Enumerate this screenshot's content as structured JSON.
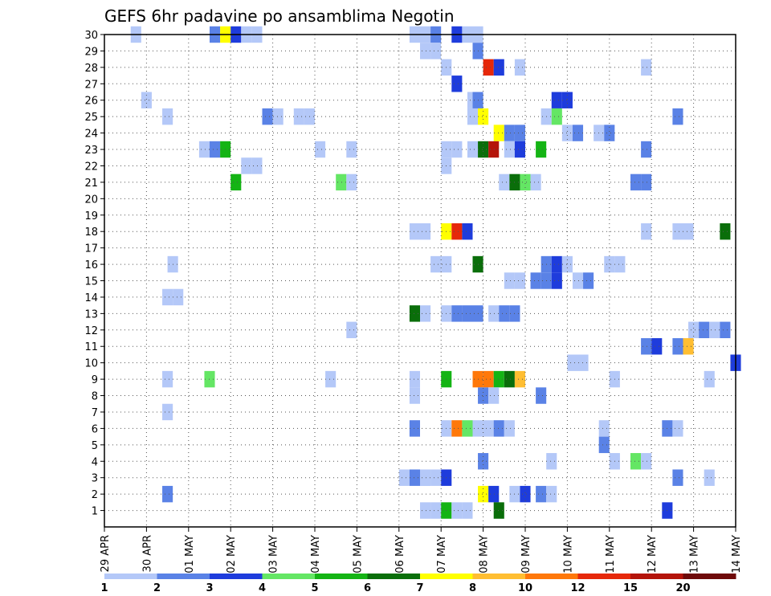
{
  "chart_data": {
    "type": "heatmap",
    "title": "GEFS 6hr padavine po ansamblima Negotin",
    "xlabel": "",
    "ylabel": "",
    "x_tick_labels": [
      "29 APR",
      "30 APR",
      "01 MAY",
      "02 MAY",
      "03 MAY",
      "04 MAY",
      "05 MAY",
      "06 MAY",
      "07 MAY",
      "08 MAY",
      "09 MAY",
      "10 MAY",
      "11 MAY",
      "12 MAY",
      "13 MAY",
      "14 MAY"
    ],
    "y_tick_labels": [
      "1",
      "2",
      "3",
      "4",
      "5",
      "6",
      "7",
      "8",
      "9",
      "10",
      "11",
      "12",
      "13",
      "14",
      "15",
      "16",
      "17",
      "18",
      "19",
      "20",
      "21",
      "22",
      "23",
      "24",
      "25",
      "26",
      "27",
      "28",
      "29",
      "30"
    ],
    "xlim": [
      0,
      15
    ],
    "ylim": [
      0,
      30
    ],
    "grid": true,
    "legend_position": "bottom",
    "legend": {
      "colors": [
        "#b4c8f8",
        "#5a82e6",
        "#1e3cdc",
        "#64e664",
        "#14b414",
        "#0a6e0a",
        "#ffff00",
        "#ffbe32",
        "#ff780a",
        "#e6280a",
        "#b4140a",
        "#6e0a0a"
      ],
      "labels": [
        "1",
        "2",
        "3",
        "4",
        "5",
        "6",
        "7",
        "8",
        "10",
        "12",
        "15",
        "20"
      ]
    },
    "colors": {
      "1": "#b4c8f8",
      "2": "#5a82e6",
      "3": "#1e3cdc",
      "4": "#64e664",
      "5": "#14b414",
      "6": "#0a6e0a",
      "7": "#ffff00",
      "8": "#ffbe32",
      "9": "#ff780a",
      "10": "#e6280a",
      "11": "#b4140a"
    },
    "cells": [
      [
        0.75,
        30,
        1
      ],
      [
        2.625,
        30,
        2
      ],
      [
        2.875,
        30,
        7
      ],
      [
        3.125,
        30,
        3
      ],
      [
        3.375,
        30,
        1
      ],
      [
        3.625,
        30,
        1
      ],
      [
        7.375,
        30,
        1
      ],
      [
        7.625,
        30,
        1
      ],
      [
        7.875,
        30,
        2
      ],
      [
        8.375,
        30,
        3
      ],
      [
        8.625,
        30,
        1
      ],
      [
        8.875,
        30,
        1
      ],
      [
        7.625,
        29,
        1
      ],
      [
        7.875,
        29,
        1
      ],
      [
        8.875,
        29,
        2
      ],
      [
        8.125,
        28,
        1
      ],
      [
        9.125,
        28,
        10
      ],
      [
        9.375,
        28,
        3
      ],
      [
        9.875,
        28,
        1
      ],
      [
        12.875,
        28,
        1
      ],
      [
        8.375,
        27,
        3
      ],
      [
        1.0,
        26,
        1
      ],
      [
        8.75,
        26,
        1
      ],
      [
        8.875,
        26,
        2
      ],
      [
        10.75,
        26,
        3
      ],
      [
        11.0,
        26,
        3
      ],
      [
        1.5,
        25,
        1
      ],
      [
        3.875,
        25,
        2
      ],
      [
        4.125,
        25,
        1
      ],
      [
        4.625,
        25,
        1
      ],
      [
        4.875,
        25,
        1
      ],
      [
        8.75,
        25,
        1
      ],
      [
        9.0,
        25,
        7
      ],
      [
        10.5,
        25,
        1
      ],
      [
        10.75,
        25,
        4
      ],
      [
        13.625,
        25,
        2
      ],
      [
        9.375,
        24,
        7
      ],
      [
        9.625,
        24,
        2
      ],
      [
        9.875,
        24,
        2
      ],
      [
        11.0,
        24,
        1
      ],
      [
        11.25,
        24,
        2
      ],
      [
        11.75,
        24,
        1
      ],
      [
        12.0,
        24,
        2
      ],
      [
        2.375,
        23,
        1
      ],
      [
        2.625,
        23,
        2
      ],
      [
        2.875,
        23,
        5
      ],
      [
        5.125,
        23,
        1
      ],
      [
        5.875,
        23,
        1
      ],
      [
        8.125,
        23,
        1
      ],
      [
        8.375,
        23,
        1
      ],
      [
        8.75,
        23,
        1
      ],
      [
        9.0,
        23,
        6
      ],
      [
        9.25,
        23,
        11
      ],
      [
        9.625,
        23,
        1
      ],
      [
        9.875,
        23,
        3
      ],
      [
        10.375,
        23,
        5
      ],
      [
        12.875,
        23,
        2
      ],
      [
        3.375,
        22,
        1
      ],
      [
        3.625,
        22,
        1
      ],
      [
        8.125,
        22,
        1
      ],
      [
        3.125,
        21,
        5
      ],
      [
        5.625,
        21,
        4
      ],
      [
        5.875,
        21,
        1
      ],
      [
        9.5,
        21,
        1
      ],
      [
        9.75,
        21,
        6
      ],
      [
        10.0,
        21,
        4
      ],
      [
        10.25,
        21,
        1
      ],
      [
        12.625,
        21,
        2
      ],
      [
        12.875,
        21,
        2
      ],
      [
        7.375,
        18,
        1
      ],
      [
        7.625,
        18,
        1
      ],
      [
        8.125,
        18,
        7
      ],
      [
        8.375,
        18,
        10
      ],
      [
        8.625,
        18,
        3
      ],
      [
        12.875,
        18,
        1
      ],
      [
        13.625,
        18,
        1
      ],
      [
        13.875,
        18,
        1
      ],
      [
        14.75,
        18,
        6
      ],
      [
        1.625,
        16,
        1
      ],
      [
        7.875,
        16,
        1
      ],
      [
        8.125,
        16,
        1
      ],
      [
        8.875,
        16,
        6
      ],
      [
        10.5,
        16,
        2
      ],
      [
        10.75,
        16,
        3
      ],
      [
        11.0,
        16,
        1
      ],
      [
        12.0,
        16,
        1
      ],
      [
        12.25,
        16,
        1
      ],
      [
        9.625,
        15,
        1
      ],
      [
        9.875,
        15,
        1
      ],
      [
        10.25,
        15,
        2
      ],
      [
        10.5,
        15,
        2
      ],
      [
        10.75,
        15,
        3
      ],
      [
        11.25,
        15,
        1
      ],
      [
        11.5,
        15,
        2
      ],
      [
        1.5,
        14,
        1
      ],
      [
        1.75,
        14,
        1
      ],
      [
        7.375,
        13,
        6
      ],
      [
        7.625,
        13,
        1
      ],
      [
        8.125,
        13,
        1
      ],
      [
        8.375,
        13,
        2
      ],
      [
        8.625,
        13,
        2
      ],
      [
        8.875,
        13,
        2
      ],
      [
        9.25,
        13,
        1
      ],
      [
        9.5,
        13,
        2
      ],
      [
        9.75,
        13,
        2
      ],
      [
        5.875,
        12,
        1
      ],
      [
        14.0,
        12,
        1
      ],
      [
        14.25,
        12,
        2
      ],
      [
        14.5,
        12,
        1
      ],
      [
        14.75,
        12,
        2
      ],
      [
        12.875,
        11,
        2
      ],
      [
        13.125,
        11,
        3
      ],
      [
        13.625,
        11,
        2
      ],
      [
        13.875,
        11,
        8
      ],
      [
        11.125,
        10,
        1
      ],
      [
        11.375,
        10,
        1
      ],
      [
        15.0,
        10,
        3
      ],
      [
        1.5,
        9,
        1
      ],
      [
        2.5,
        9,
        4
      ],
      [
        5.375,
        9,
        1
      ],
      [
        7.375,
        9,
        1
      ],
      [
        8.125,
        9,
        5
      ],
      [
        8.875,
        9,
        9
      ],
      [
        9.125,
        9,
        9
      ],
      [
        9.375,
        9,
        5
      ],
      [
        9.625,
        9,
        6
      ],
      [
        9.875,
        9,
        8
      ],
      [
        12.125,
        9,
        1
      ],
      [
        14.375,
        9,
        1
      ],
      [
        7.375,
        8,
        1
      ],
      [
        9.0,
        8,
        2
      ],
      [
        9.25,
        8,
        1
      ],
      [
        10.375,
        8,
        2
      ],
      [
        1.5,
        7,
        1
      ],
      [
        7.375,
        6,
        2
      ],
      [
        8.125,
        6,
        1
      ],
      [
        8.375,
        6,
        9
      ],
      [
        8.625,
        6,
        4
      ],
      [
        8.875,
        6,
        1
      ],
      [
        9.125,
        6,
        1
      ],
      [
        9.375,
        6,
        2
      ],
      [
        9.625,
        6,
        1
      ],
      [
        11.875,
        6,
        1
      ],
      [
        13.375,
        6,
        2
      ],
      [
        13.625,
        6,
        1
      ],
      [
        11.875,
        5,
        2
      ],
      [
        9.0,
        4,
        2
      ],
      [
        10.625,
        4,
        1
      ],
      [
        12.125,
        4,
        1
      ],
      [
        12.625,
        4,
        4
      ],
      [
        12.875,
        4,
        1
      ],
      [
        7.125,
        3,
        1
      ],
      [
        7.375,
        3,
        2
      ],
      [
        7.625,
        3,
        1
      ],
      [
        7.625,
        2.995,
        1
      ],
      [
        7.875,
        3,
        1
      ],
      [
        8.125,
        3,
        3
      ],
      [
        13.625,
        3,
        2
      ],
      [
        14.375,
        3,
        1
      ],
      [
        1.5,
        2,
        2
      ],
      [
        9.0,
        2,
        7
      ],
      [
        9.25,
        2,
        3
      ],
      [
        9.75,
        2,
        1
      ],
      [
        10.0,
        2,
        3
      ],
      [
        10.375,
        2,
        2
      ],
      [
        10.625,
        2,
        1
      ],
      [
        7.625,
        1,
        1
      ],
      [
        7.875,
        1,
        1
      ],
      [
        8.125,
        1,
        5
      ],
      [
        8.375,
        1,
        1
      ],
      [
        8.625,
        1,
        1
      ],
      [
        9.375,
        1,
        6
      ],
      [
        13.375,
        1,
        3
      ]
    ]
  }
}
